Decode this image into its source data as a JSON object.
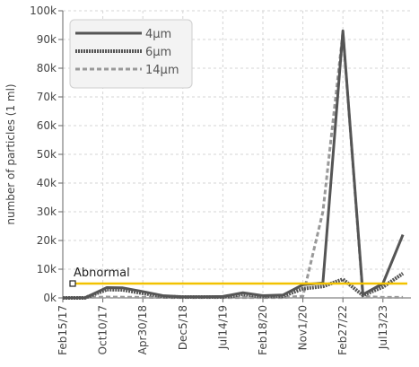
{
  "chart_data": {
    "type": "line",
    "title": "",
    "xlabel": "",
    "ylabel": "number of particles (1 ml)",
    "ylim": [
      0,
      100000
    ],
    "y_ticks": [
      0,
      10000,
      20000,
      30000,
      40000,
      50000,
      60000,
      70000,
      80000,
      90000,
      100000
    ],
    "y_tick_labels": [
      "0k",
      "10k",
      "20k",
      "30k",
      "40k",
      "50k",
      "60k",
      "70k",
      "80k",
      "90k",
      "100k"
    ],
    "x_tick_labels": [
      "Feb15/17",
      "Oct10/17",
      "Apr30/18",
      "Dec5/18",
      "Jul14/19",
      "Feb18/20",
      "Nov1/20",
      "Feb27/22",
      "Jul13/23"
    ],
    "grid": true,
    "legend_position": "top-left",
    "series": [
      {
        "name": "4μm",
        "color": "#555555",
        "style": "solid",
        "values": [
          [
            0,
            0
          ],
          [
            0.55,
            0
          ],
          [
            1.1,
            3600
          ],
          [
            1.5,
            3500
          ],
          [
            2.0,
            2200
          ],
          [
            2.5,
            800
          ],
          [
            3.0,
            400
          ],
          [
            3.5,
            400
          ],
          [
            4.0,
            500
          ],
          [
            4.5,
            1800
          ],
          [
            5.0,
            800
          ],
          [
            5.5,
            1000
          ],
          [
            6.0,
            4600
          ],
          [
            6.5,
            5200
          ],
          [
            7.0,
            93000
          ],
          [
            7.5,
            1200
          ],
          [
            8.0,
            5000
          ],
          [
            8.5,
            22000
          ]
        ]
      },
      {
        "name": "6μm",
        "color": "#555555",
        "style": "dotted",
        "values": [
          [
            0,
            0
          ],
          [
            0.55,
            0
          ],
          [
            1.1,
            2900
          ],
          [
            1.5,
            2800
          ],
          [
            2.0,
            1600
          ],
          [
            2.5,
            500
          ],
          [
            3.0,
            300
          ],
          [
            3.5,
            300
          ],
          [
            4.0,
            300
          ],
          [
            4.5,
            1200
          ],
          [
            5.0,
            500
          ],
          [
            5.5,
            600
          ],
          [
            6.0,
            3200
          ],
          [
            6.5,
            4000
          ],
          [
            7.0,
            6500
          ],
          [
            7.5,
            900
          ],
          [
            8.0,
            3800
          ],
          [
            8.5,
            8500
          ]
        ]
      },
      {
        "name": "14μm",
        "color": "#999999",
        "style": "dashed",
        "values": [
          [
            0,
            0
          ],
          [
            1.1,
            300
          ],
          [
            2.0,
            200
          ],
          [
            3.0,
            100
          ],
          [
            4.0,
            100
          ],
          [
            5.0,
            100
          ],
          [
            5.5,
            100
          ],
          [
            6.0,
            600
          ],
          [
            6.5,
            30000
          ],
          [
            7.0,
            92500
          ],
          [
            7.5,
            500
          ],
          [
            8.0,
            200
          ],
          [
            8.5,
            200
          ]
        ]
      }
    ],
    "threshold": {
      "label": "Abnormal",
      "value": 5000,
      "color": "#f2c200"
    }
  }
}
